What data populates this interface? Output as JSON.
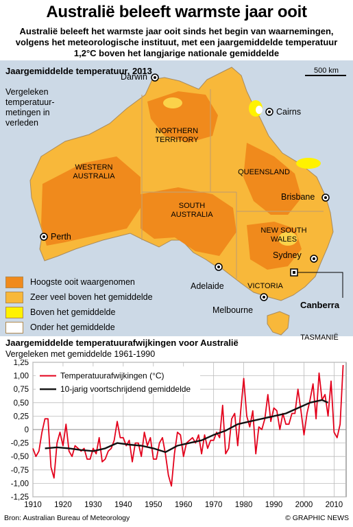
{
  "header": {
    "title": "Australië beleeft warmste jaar ooit",
    "subtitle": "Australië beleeft het warmste jaar ooit sinds het begin van waarnemingen, volgens het meteorologische instituut, met een jaargemiddelde temperatuur 1,2°C boven het langjarige nationale gemiddelde"
  },
  "map": {
    "legend_title": "Jaargemiddelde temperatuur, 2013",
    "legend_subtitle": "Vergeleken temperatuur-metingen in verleden",
    "scale_label": "500 km",
    "cities": [
      "Darwin",
      "Cairns",
      "Brisbane",
      "Perth",
      "Sydney",
      "Adelaide",
      "Melbourne"
    ],
    "capital": "Canberra",
    "states": {
      "nt": "NORTHERN TERRITORY",
      "wa": "WESTERN AUSTRALIA",
      "qld": "QUEENSLAND",
      "sa": "SOUTH AUSTRALIA",
      "nsw": "NEW SOUTH WALES",
      "vic": "VICTORIA",
      "tas": "TASMANIË"
    },
    "legend": [
      {
        "label": "Hoogste ooit waargenomen",
        "color": "#f08a1c"
      },
      {
        "label": "Zeer veel boven het gemiddelde",
        "color": "#f8b83a"
      },
      {
        "label": "Boven het gemiddelde",
        "color": "#fff200"
      },
      {
        "label": "Onder het gemiddelde",
        "color": "#ffffff"
      }
    ],
    "colors": {
      "sea": "#ccd9e6",
      "land_base": "#f8b83a",
      "land_hot": "#f08a1c",
      "land_warm": "#fbd24a"
    }
  },
  "chart_data": {
    "type": "line",
    "title": "Jaargemiddelde temperatuurafwijkingen voor Australië",
    "subtitle": "Vergeleken met gemiddelde 1961-1990",
    "ylim": [
      -1.25,
      1.25
    ],
    "yticks": [
      "1,25",
      "1,00",
      "0,75",
      "0,50",
      "0,25",
      "0",
      "-0,25",
      "-0,50",
      "-0,75",
      "-1,00",
      "-1,25"
    ],
    "xticks": [
      "1910",
      "1920",
      "1930",
      "1940",
      "1950",
      "1960",
      "1970",
      "1980",
      "1990",
      "2000",
      "2010"
    ],
    "grid": true,
    "legend_position": "top-left",
    "series": [
      {
        "name": "Temperatuurafwijkingen (°C)",
        "color": "#e3001b",
        "x": [
          1910,
          1911,
          1912,
          1913,
          1914,
          1915,
          1916,
          1917,
          1918,
          1919,
          1920,
          1921,
          1922,
          1923,
          1924,
          1925,
          1926,
          1927,
          1928,
          1929,
          1930,
          1931,
          1932,
          1933,
          1934,
          1935,
          1936,
          1937,
          1938,
          1939,
          1940,
          1941,
          1942,
          1943,
          1944,
          1945,
          1946,
          1947,
          1948,
          1949,
          1950,
          1951,
          1952,
          1953,
          1954,
          1955,
          1956,
          1957,
          1958,
          1959,
          1960,
          1961,
          1962,
          1963,
          1964,
          1965,
          1966,
          1967,
          1968,
          1969,
          1970,
          1971,
          1972,
          1973,
          1974,
          1975,
          1976,
          1977,
          1978,
          1979,
          1980,
          1981,
          1982,
          1983,
          1984,
          1985,
          1986,
          1987,
          1988,
          1989,
          1990,
          1991,
          1992,
          1993,
          1994,
          1995,
          1996,
          1997,
          1998,
          1999,
          2000,
          2001,
          2002,
          2003,
          2004,
          2005,
          2006,
          2007,
          2008,
          2009,
          2010,
          2011,
          2012,
          2013
        ],
        "y": [
          -0.35,
          -0.5,
          -0.4,
          -0.05,
          0.2,
          0.2,
          -0.7,
          -0.9,
          -0.25,
          -0.05,
          -0.3,
          0.1,
          -0.4,
          -0.5,
          -0.3,
          -0.35,
          -0.4,
          -0.35,
          -0.55,
          -0.55,
          -0.35,
          -0.45,
          -0.15,
          -0.6,
          -0.55,
          -0.4,
          -0.35,
          -0.2,
          0.15,
          -0.15,
          -0.15,
          -0.3,
          -0.2,
          -0.6,
          -0.25,
          -0.25,
          -0.5,
          -0.05,
          -0.3,
          -0.15,
          -0.55,
          -0.55,
          -0.25,
          -0.15,
          -0.45,
          -0.85,
          -1.05,
          -0.45,
          -0.05,
          -0.1,
          -0.5,
          -0.25,
          -0.2,
          -0.15,
          -0.25,
          -0.1,
          -0.45,
          -0.1,
          -0.35,
          -0.2,
          -0.2,
          -0.05,
          -0.15,
          0.45,
          -0.45,
          -0.35,
          0.2,
          0.3,
          -0.3,
          0.35,
          0.95,
          0.25,
          0.05,
          0.35,
          -0.45,
          0.05,
          0.0,
          0.2,
          0.65,
          0.15,
          0.4,
          0.35,
          0.0,
          0.3,
          0.1,
          0.1,
          0.3,
          0.3,
          0.75,
          0.35,
          -0.1,
          0.3,
          0.55,
          0.85,
          0.2,
          1.05,
          0.55,
          0.65,
          0.25,
          0.9,
          -0.05,
          -0.15,
          0.1,
          1.2
        ]
      },
      {
        "name": "10-jarig voortschrijdend gemiddelde",
        "color": "#111111",
        "x": [
          1914,
          1918,
          1922,
          1926,
          1930,
          1934,
          1938,
          1942,
          1946,
          1950,
          1954,
          1958,
          1962,
          1966,
          1970,
          1974,
          1978,
          1982,
          1986,
          1990,
          1994,
          1998,
          2002,
          2006,
          2008
        ],
        "y": [
          -0.35,
          -0.33,
          -0.35,
          -0.38,
          -0.4,
          -0.35,
          -0.25,
          -0.28,
          -0.3,
          -0.35,
          -0.42,
          -0.3,
          -0.25,
          -0.2,
          -0.1,
          -0.02,
          0.1,
          0.15,
          0.2,
          0.25,
          0.3,
          0.4,
          0.5,
          0.55,
          0.5
        ]
      }
    ]
  },
  "footer": {
    "source": "Bron: Australian Bureau of Meteorology",
    "credit": "© GRAPHIC NEWS"
  }
}
